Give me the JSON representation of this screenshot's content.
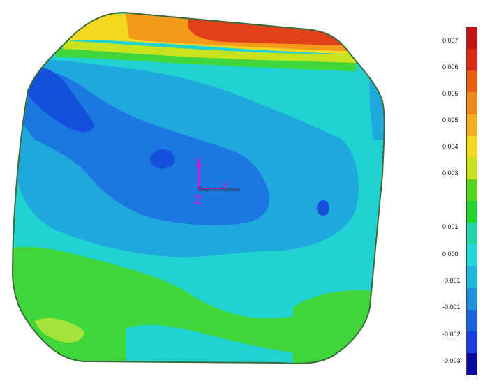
{
  "origin": {
    "label": "Repcoordsystem",
    "axes": [
      "Y",
      "X",
      "Z"
    ]
  },
  "legend": {
    "ticks": [
      "0.007",
      "0.006",
      "0.005",
      "0.005",
      "0.004",
      "0.003",
      "0.001",
      "0.000",
      "-0.001",
      "-0.001",
      "-0.002",
      "-0.003"
    ],
    "colors": [
      "#c31212",
      "#e02810",
      "#ee5a10",
      "#f5861a",
      "#f3ae1e",
      "#f2d81e",
      "#c9e21e",
      "#53d61e",
      "#21d62b",
      "#21d6a6",
      "#22d8d8",
      "#1fb8dc",
      "#1d90df",
      "#1a64e2",
      "#173ce0",
      "#0a0aa0"
    ]
  }
}
